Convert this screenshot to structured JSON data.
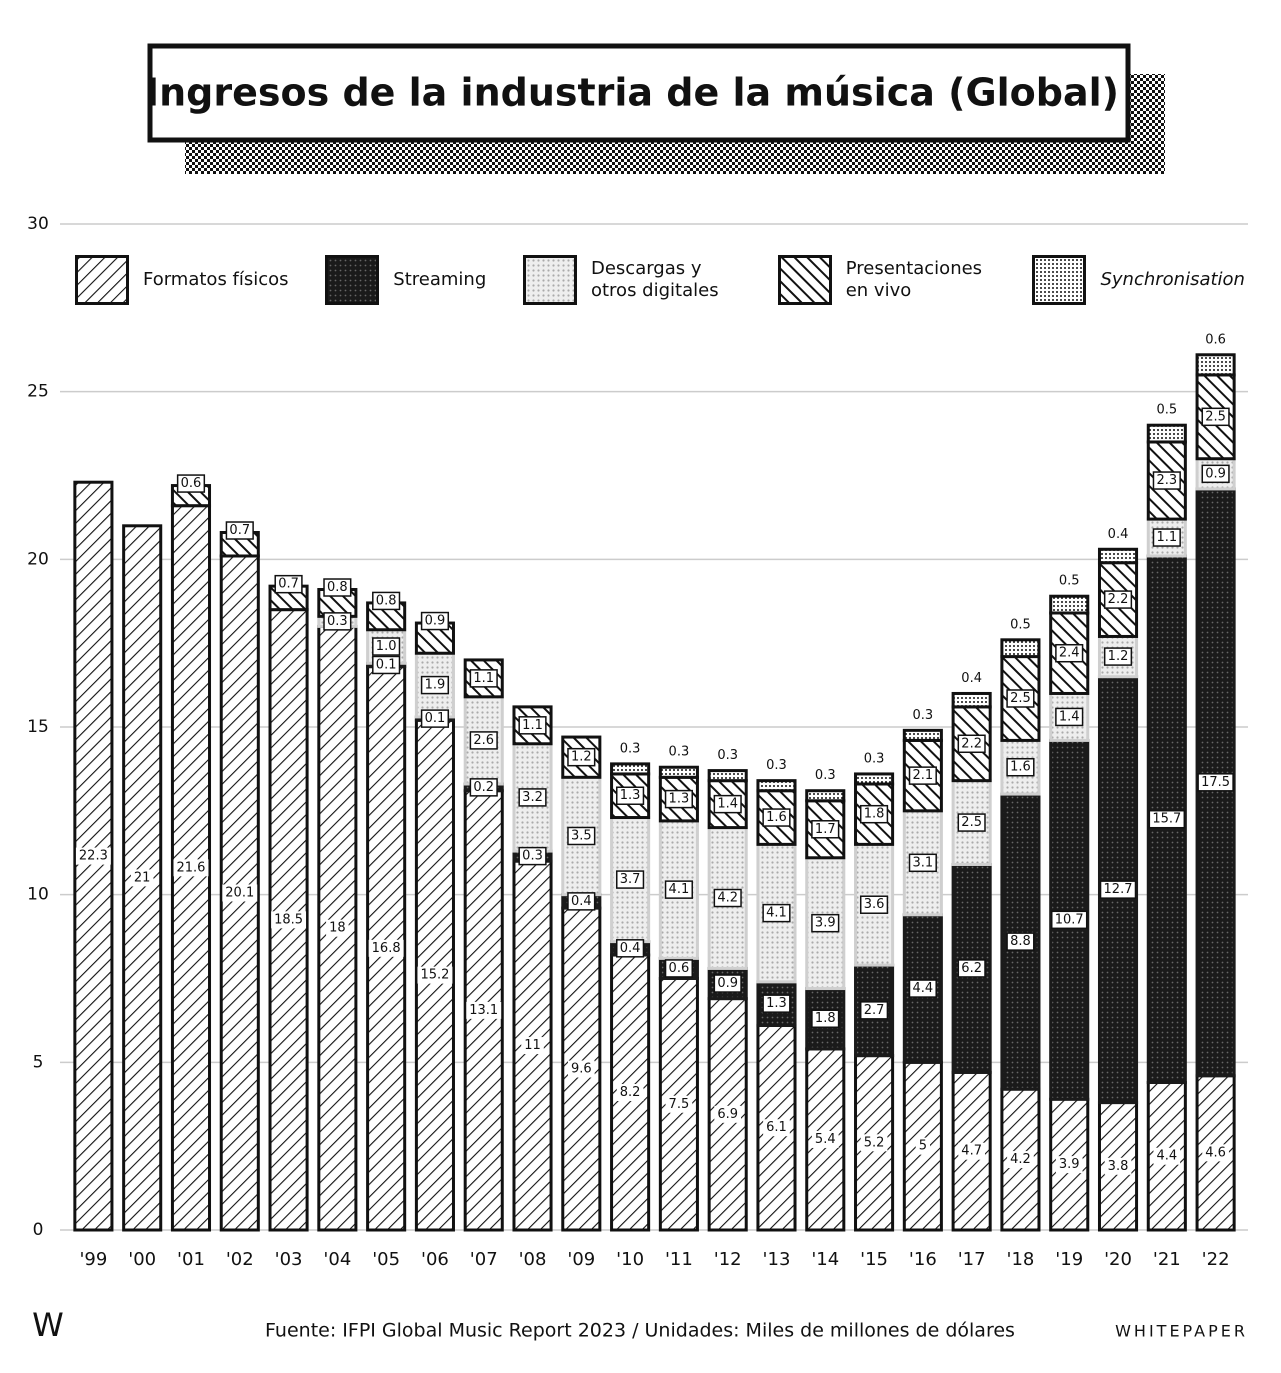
{
  "chart_data": {
    "type": "stacked-bar",
    "title": "Ingresos de la industria de la música (Global)",
    "source": "Fuente: IFPI Global Music Report 2023  /  Unidades: Miles de millones de dólares",
    "brand_mark": "W",
    "brand": "WHITEPAPER",
    "categories": [
      "'99",
      "'00",
      "'01",
      "'02",
      "'03",
      "'04",
      "'05",
      "'06",
      "'07",
      "'08",
      "'09",
      "'10",
      "'11",
      "'12",
      "'13",
      "'14",
      "'15",
      "'16",
      "'17",
      "'18",
      "'19",
      "'20",
      "'21",
      "'22"
    ],
    "ylim": [
      0,
      30
    ],
    "yticks": [
      0,
      5,
      10,
      15,
      20,
      25,
      30
    ],
    "grid": true,
    "series": [
      {
        "name": "Formatos físicos",
        "color": "#111111",
        "values": [
          22.3,
          21,
          21.6,
          20.1,
          18.5,
          18,
          16.8,
          15.2,
          13.1,
          11,
          9.6,
          8.2,
          7.5,
          6.9,
          6.1,
          5.4,
          5.2,
          5,
          4.7,
          4.2,
          3.9,
          3.8,
          4.4,
          4.6
        ]
      },
      {
        "name": "Streaming",
        "color": "#1a1a1a",
        "values": [
          null,
          null,
          null,
          null,
          null,
          null,
          0.1,
          0.1,
          0.2,
          0.3,
          0.4,
          0.4,
          0.6,
          0.9,
          1.3,
          1.8,
          2.7,
          4.4,
          6.2,
          8.8,
          10.7,
          12.7,
          15.7,
          17.5
        ]
      },
      {
        "name": "Descargas y otros digitales",
        "color": "#cfcfcf",
        "values": [
          null,
          null,
          null,
          null,
          null,
          0.3,
          1,
          1.9,
          2.6,
          3.2,
          3.5,
          3.7,
          4.1,
          4.2,
          4.1,
          3.9,
          3.6,
          3.1,
          2.5,
          1.6,
          1.4,
          1.2,
          1.1,
          0.9
        ],
        "value_labels": [
          null,
          null,
          null,
          null,
          null,
          "0.3",
          "1.0",
          "1.9",
          "2.6",
          "3.2",
          "3.5",
          "3.7",
          "4.1",
          "4.2",
          "4.1",
          "3.9",
          "3.6",
          "3.1",
          "2.5",
          "1.6",
          "1.4",
          "1.2",
          "1.1",
          "0.9"
        ]
      },
      {
        "name": "Presentaciones en vivo",
        "color": "#111111",
        "values": [
          null,
          null,
          0.6,
          0.7,
          0.7,
          0.8,
          0.8,
          0.9,
          1.1,
          1.1,
          1.2,
          1.3,
          1.3,
          1.4,
          1.6,
          1.7,
          1.8,
          2.1,
          2.2,
          2.5,
          2.4,
          2.2,
          2.3,
          2.5
        ]
      },
      {
        "name": "Synchronisation",
        "color": "#111111",
        "values": [
          null,
          null,
          null,
          null,
          null,
          null,
          null,
          null,
          null,
          null,
          null,
          0.3,
          0.3,
          0.3,
          0.3,
          0.3,
          0.3,
          0.3,
          0.4,
          0.5,
          0.5,
          0.4,
          0.5,
          0.6
        ]
      }
    ]
  }
}
